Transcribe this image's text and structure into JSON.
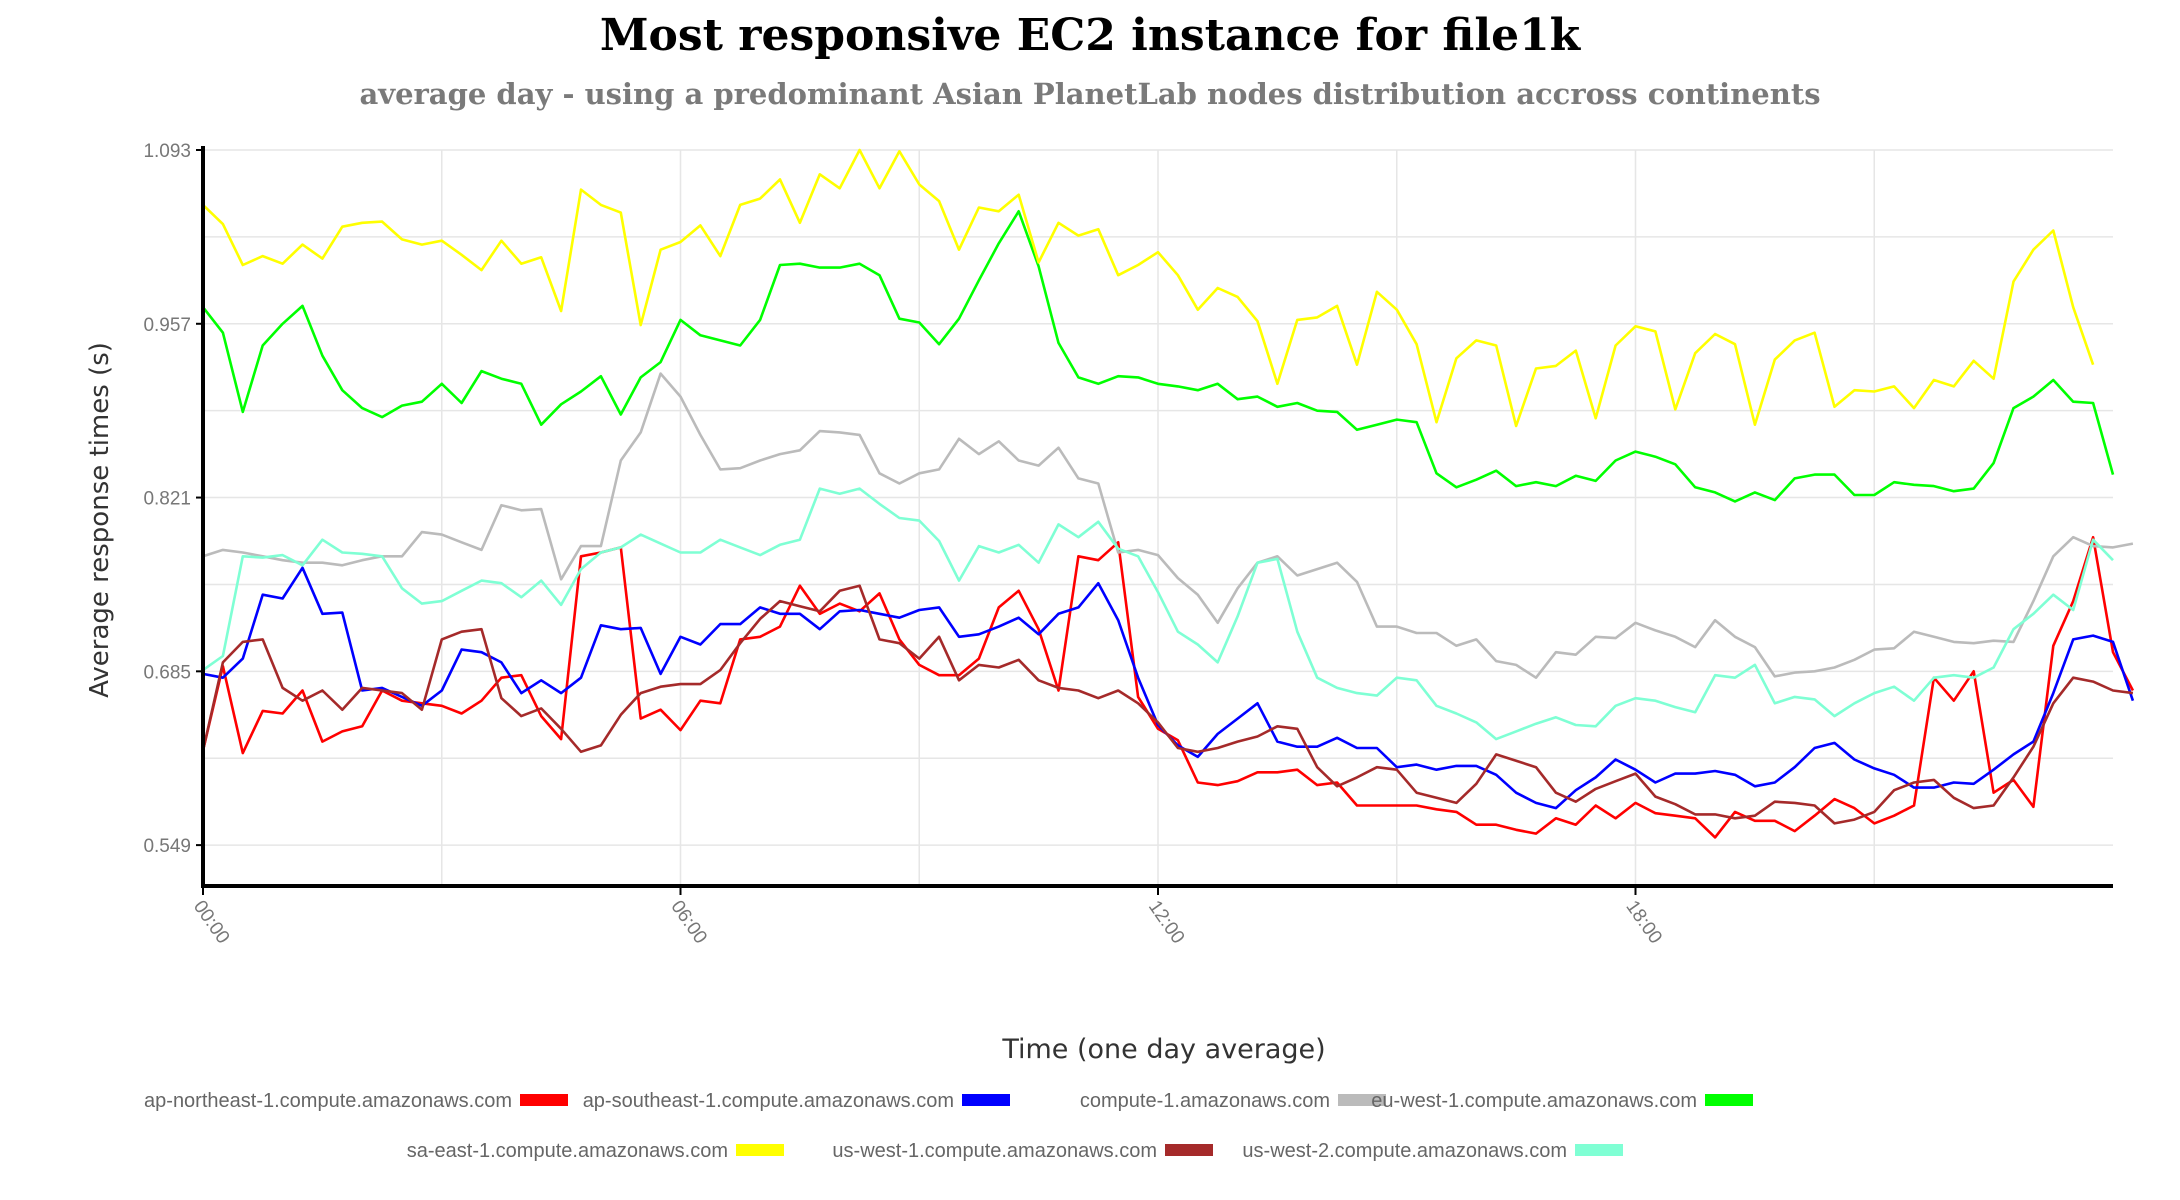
{
  "chart_data": {
    "type": "line",
    "title": "Most responsive EC2 instance for file1k",
    "subtitle": "average day - using a predominant Asian PlanetLab nodes distribution accross continents",
    "xlabel": "Time (one day average)",
    "ylabel": "Average response times (s)",
    "x_ticks": [
      "00:00",
      "06:00",
      "12:00",
      "18:00"
    ],
    "y_ticks": [
      "0.549",
      "0.685",
      "0.821",
      "0.957",
      "1.093"
    ],
    "ylim": [
      0.517,
      1.093
    ],
    "xlim_hours": [
      0,
      24
    ],
    "sample_interval_minutes": 15,
    "grid": true,
    "legend_position": "bottom",
    "series": [
      {
        "name": "ap-northeast-1.compute.amazonaws.com",
        "color": "#ff0000",
        "values": [
          0.623,
          0.689,
          0.621,
          0.654,
          0.652,
          0.67,
          0.63,
          0.638,
          0.642,
          0.67,
          0.662,
          0.66,
          0.658,
          0.652,
          0.662,
          0.68,
          0.682,
          0.65,
          0.632,
          0.775,
          0.778,
          0.782,
          0.648,
          0.655,
          0.639,
          0.662,
          0.66,
          0.71,
          0.712,
          0.72,
          0.752,
          0.73,
          0.738,
          0.732,
          0.746,
          0.71,
          0.69,
          0.682,
          0.682,
          0.695,
          0.735,
          0.748,
          0.718,
          0.67,
          0.775,
          0.772,
          0.786,
          0.665,
          0.64,
          0.631,
          0.598,
          0.596,
          0.599,
          0.606,
          0.606,
          0.608,
          0.596,
          0.598,
          0.58,
          0.58,
          0.58,
          0.58,
          0.577,
          0.575,
          0.565,
          0.565,
          0.561,
          0.558,
          0.57,
          0.565,
          0.58,
          0.57,
          0.582,
          0.574,
          0.572,
          0.57,
          0.555,
          0.575,
          0.568,
          0.568,
          0.56,
          0.572,
          0.585,
          0.578,
          0.566,
          0.572,
          0.58,
          0.68,
          0.662,
          0.685,
          0.59,
          0.6,
          0.579,
          0.705,
          0.74,
          0.79,
          0.7,
          0.67
        ]
      },
      {
        "name": "ap-southeast-1.compute.amazonaws.com",
        "color": "#0000ff",
        "values": [
          0.683,
          0.68,
          0.695,
          0.745,
          0.742,
          0.766,
          0.73,
          0.731,
          0.67,
          0.672,
          0.665,
          0.658,
          0.67,
          0.702,
          0.7,
          0.692,
          0.668,
          0.678,
          0.668,
          0.68,
          0.721,
          0.718,
          0.719,
          0.683,
          0.712,
          0.706,
          0.722,
          0.722,
          0.735,
          0.73,
          0.73,
          0.718,
          0.732,
          0.733,
          0.73,
          0.727,
          0.733,
          0.735,
          0.712,
          0.714,
          0.72,
          0.727,
          0.714,
          0.73,
          0.735,
          0.754,
          0.725,
          0.68,
          0.643,
          0.627,
          0.618,
          0.636,
          0.648,
          0.66,
          0.63,
          0.626,
          0.626,
          0.633,
          0.625,
          0.625,
          0.61,
          0.612,
          0.608,
          0.611,
          0.611,
          0.604,
          0.59,
          0.582,
          0.578,
          0.592,
          0.602,
          0.616,
          0.608,
          0.598,
          0.605,
          0.605,
          0.607,
          0.604,
          0.595,
          0.598,
          0.61,
          0.625,
          0.629,
          0.616,
          0.609,
          0.604,
          0.594,
          0.594,
          0.598,
          0.597,
          0.608,
          0.62,
          0.63,
          0.668,
          0.71,
          0.713,
          0.708,
          0.662
        ]
      },
      {
        "name": "compute-1.amazonaws.com",
        "color": "#bbbbbb",
        "values": [
          0.775,
          0.78,
          0.778,
          0.775,
          0.772,
          0.77,
          0.77,
          0.768,
          0.772,
          0.775,
          0.775,
          0.794,
          0.792,
          0.786,
          0.78,
          0.815,
          0.811,
          0.812,
          0.757,
          0.783,
          0.783,
          0.85,
          0.872,
          0.918,
          0.9,
          0.87,
          0.843,
          0.844,
          0.85,
          0.855,
          0.858,
          0.873,
          0.872,
          0.87,
          0.84,
          0.832,
          0.84,
          0.843,
          0.867,
          0.855,
          0.865,
          0.85,
          0.846,
          0.86,
          0.836,
          0.832,
          0.778,
          0.78,
          0.776,
          0.758,
          0.745,
          0.723,
          0.75,
          0.77,
          0.775,
          0.76,
          0.765,
          0.77,
          0.755,
          0.72,
          0.72,
          0.715,
          0.715,
          0.705,
          0.71,
          0.693,
          0.69,
          0.68,
          0.7,
          0.698,
          0.712,
          0.711,
          0.723,
          0.717,
          0.712,
          0.704,
          0.725,
          0.712,
          0.704,
          0.681,
          0.684,
          0.685,
          0.688,
          0.694,
          0.702,
          0.703,
          0.716,
          0.712,
          0.708,
          0.707,
          0.709,
          0.708,
          0.74,
          0.775,
          0.79,
          0.783,
          0.782,
          0.785
        ]
      },
      {
        "name": "eu-west-1.compute.amazonaws.com",
        "color": "#00ff00",
        "values": [
          0.97,
          0.95,
          0.888,
          0.94,
          0.957,
          0.971,
          0.932,
          0.905,
          0.891,
          0.884,
          0.893,
          0.896,
          0.91,
          0.895,
          0.92,
          0.914,
          0.91,
          0.878,
          0.894,
          0.904,
          0.916,
          0.886,
          0.915,
          0.927,
          0.96,
          0.948,
          0.944,
          0.94,
          0.96,
          1.003,
          1.004,
          1.001,
          1.001,
          1.004,
          0.995,
          0.961,
          0.958,
          0.941,
          0.961,
          0.991,
          1.02,
          1.045,
          1.002,
          0.942,
          0.915,
          0.91,
          0.916,
          0.915,
          0.91,
          0.908,
          0.905,
          0.91,
          0.898,
          0.9,
          0.892,
          0.895,
          0.889,
          0.888,
          0.874,
          0.878,
          0.882,
          0.88,
          0.84,
          0.829,
          0.835,
          0.842,
          0.83,
          0.833,
          0.83,
          0.838,
          0.834,
          0.85,
          0.857,
          0.853,
          0.847,
          0.829,
          0.825,
          0.818,
          0.825,
          0.819,
          0.836,
          0.839,
          0.839,
          0.823,
          0.823,
          0.833,
          0.831,
          0.83,
          0.826,
          0.828,
          0.848,
          0.891,
          0.9,
          0.913,
          0.896,
          0.895,
          0.839
        ]
      },
      {
        "name": "sa-east-1.compute.amazonaws.com",
        "color": "#ffff00",
        "values": [
          1.05,
          1.035,
          1.003,
          1.01,
          1.004,
          1.019,
          1.008,
          1.033,
          1.036,
          1.037,
          1.023,
          1.019,
          1.022,
          1.011,
          0.999,
          1.022,
          1.004,
          1.009,
          0.967,
          1.062,
          1.05,
          1.044,
          0.956,
          1.015,
          1.021,
          1.034,
          1.01,
          1.05,
          1.055,
          1.07,
          1.036,
          1.074,
          1.063,
          1.093,
          1.063,
          1.092,
          1.066,
          1.053,
          1.015,
          1.048,
          1.045,
          1.058,
          1.005,
          1.036,
          1.026,
          1.031,
          0.995,
          1.003,
          1.013,
          0.995,
          0.968,
          0.985,
          0.978,
          0.959,
          0.91,
          0.96,
          0.962,
          0.971,
          0.925,
          0.982,
          0.968,
          0.941,
          0.88,
          0.93,
          0.944,
          0.94,
          0.877,
          0.922,
          0.924,
          0.936,
          0.883,
          0.94,
          0.955,
          0.951,
          0.89,
          0.934,
          0.949,
          0.941,
          0.878,
          0.929,
          0.944,
          0.95,
          0.892,
          0.905,
          0.904,
          0.908,
          0.891,
          0.913,
          0.908,
          0.928,
          0.914,
          0.99,
          1.015,
          1.03,
          0.97,
          0.925
        ]
      },
      {
        "name": "us-west-1.compute.amazonaws.com",
        "color": "#a52a2a",
        "values": [
          0.623,
          0.692,
          0.708,
          0.71,
          0.672,
          0.662,
          0.67,
          0.655,
          0.672,
          0.67,
          0.668,
          0.655,
          0.71,
          0.716,
          0.718,
          0.664,
          0.65,
          0.656,
          0.64,
          0.622,
          0.627,
          0.651,
          0.668,
          0.673,
          0.675,
          0.675,
          0.686,
          0.707,
          0.726,
          0.74,
          0.736,
          0.732,
          0.748,
          0.752,
          0.71,
          0.707,
          0.695,
          0.712,
          0.678,
          0.69,
          0.688,
          0.694,
          0.678,
          0.672,
          0.67,
          0.664,
          0.67,
          0.66,
          0.645,
          0.625,
          0.622,
          0.625,
          0.63,
          0.634,
          0.642,
          0.64,
          0.61,
          0.595,
          0.602,
          0.61,
          0.608,
          0.59,
          0.586,
          0.582,
          0.597,
          0.62,
          0.615,
          0.61,
          0.59,
          0.583,
          0.593,
          0.599,
          0.605,
          0.587,
          0.581,
          0.573,
          0.573,
          0.57,
          0.572,
          0.583,
          0.582,
          0.58,
          0.566,
          0.569,
          0.575,
          0.592,
          0.598,
          0.6,
          0.586,
          0.578,
          0.58,
          0.602,
          0.626,
          0.66,
          0.68,
          0.677,
          0.67,
          0.668
        ]
      },
      {
        "name": "us-west-2.compute.amazonaws.com",
        "color": "#7fffd4",
        "values": [
          0.686,
          0.697,
          0.775,
          0.774,
          0.776,
          0.768,
          0.788,
          0.778,
          0.777,
          0.775,
          0.75,
          0.738,
          0.74,
          0.748,
          0.756,
          0.754,
          0.743,
          0.756,
          0.737,
          0.765,
          0.778,
          0.782,
          0.792,
          0.785,
          0.778,
          0.778,
          0.788,
          0.782,
          0.776,
          0.784,
          0.788,
          0.828,
          0.824,
          0.828,
          0.816,
          0.805,
          0.803,
          0.787,
          0.756,
          0.783,
          0.778,
          0.784,
          0.77,
          0.8,
          0.79,
          0.802,
          0.781,
          0.775,
          0.747,
          0.716,
          0.706,
          0.692,
          0.728,
          0.77,
          0.773,
          0.716,
          0.68,
          0.672,
          0.668,
          0.666,
          0.68,
          0.678,
          0.658,
          0.652,
          0.645,
          0.632,
          0.638,
          0.644,
          0.649,
          0.643,
          0.642,
          0.658,
          0.664,
          0.662,
          0.657,
          0.653,
          0.682,
          0.68,
          0.69,
          0.66,
          0.665,
          0.663,
          0.65,
          0.66,
          0.668,
          0.673,
          0.662,
          0.68,
          0.682,
          0.68,
          0.688,
          0.718,
          0.73,
          0.745,
          0.733,
          0.788,
          0.772
        ]
      }
    ]
  }
}
